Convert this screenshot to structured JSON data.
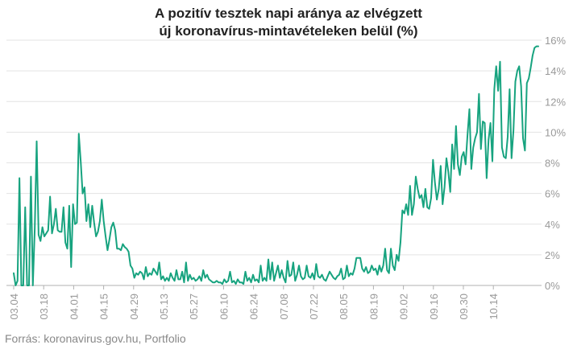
{
  "title": {
    "line1": "A pozitív tesztek napi aránya az elvégzett",
    "line2": "új koronavírus-mintavételeken belül (%)"
  },
  "source": "Forrás: koronavirus.gov.hu, Portfolio",
  "colors": {
    "line": "#17a37f",
    "grid": "#e3e3e3",
    "axis": "#b0b0b0",
    "text": "#999999"
  },
  "chart_data": {
    "type": "line",
    "title": "A pozitív tesztek napi aránya az elvégzett új koronavírus-mintavételeken belül (%)",
    "xlabel": "",
    "ylabel": "",
    "ylim": [
      0,
      16
    ],
    "y_axis_side": "right",
    "y_ticks": [
      "0%",
      "2%",
      "4%",
      "6%",
      "8%",
      "10%",
      "12%",
      "14%",
      "16%"
    ],
    "x_ticks": [
      "03.04",
      "03.18",
      "04.01",
      "04.15",
      "04.29",
      "05.13",
      "05.27",
      "06.10",
      "06.24",
      "07.08",
      "07.22",
      "08.05",
      "08.19",
      "09.02",
      "09.16",
      "09.30",
      "10.14"
    ],
    "grid": "horizontal",
    "series": [
      {
        "values": [
          0.8,
          0,
          0.3,
          7.0,
          0,
          0,
          5.1,
          0,
          0,
          7.1,
          0,
          3.7,
          9.4,
          3.3,
          2.9,
          3.8,
          3.2,
          3.4,
          3.6,
          5.8,
          3.4,
          4.0,
          5.0,
          3.6,
          3.5,
          3.5,
          5.1,
          2.8,
          2.4,
          5.2,
          1.2,
          5.3,
          4.0,
          4.1,
          9.9,
          8.1,
          6.0,
          6.4,
          4.2,
          5.3,
          3.8,
          5.2,
          4.1,
          3.2,
          3.5,
          4.2,
          5.6,
          4.2,
          3.2,
          2.3,
          3.0,
          3.8,
          4.1,
          3.6,
          2.4,
          2.4,
          2.3,
          2.7,
          2.5,
          2.4,
          2.2,
          1.3,
          1.1,
          0.5,
          0.8,
          0.7,
          0.9,
          0.8,
          0.4,
          1.2,
          0.6,
          0.8,
          0.7,
          1.1,
          0.9,
          0.7,
          1.5,
          0.4,
          0.6,
          0.3,
          0.5,
          0.3,
          0.8,
          0.5,
          0.3,
          1.0,
          0.4,
          0.4,
          0.9,
          0.2,
          1.5,
          0.3,
          0.7,
          0.4,
          0.5,
          0.3,
          0.4,
          0.6,
          0.3,
          1.0,
          0.5,
          0.7,
          0.4,
          0.3,
          0.2,
          0.2,
          0.3,
          0.2,
          0.2,
          0.1,
          0.4,
          0.2,
          0.3,
          0.9,
          0.2,
          0.3,
          0.1,
          0.4,
          0.2,
          0.2,
          0.1,
          0.9,
          0.3,
          0.5,
          0.2,
          0.7,
          0.3,
          0.4,
          0.2,
          1.3,
          0.3,
          0.5,
          0.3,
          1.7,
          0.4,
          1.5,
          0.3,
          0.8,
          1.3,
          0.5,
          1.0,
          0.5,
          0.2,
          1.6,
          0.6,
          0.7,
          1.5,
          0.3,
          0.7,
          1.3,
          0.6,
          0.4,
          0.5,
          1.3,
          0.6,
          0.5,
          0.8,
          0.4,
          1.4,
          0.6,
          0.5,
          0.7,
          0.4,
          0.3,
          0.6,
          0.9,
          0.7,
          0.5,
          0.4,
          0.6,
          0.7,
          1.1,
          0.4,
          0.5,
          1.3,
          0.6,
          0.8,
          0.7,
          1.1,
          1.8,
          1.8,
          1.8,
          1.1,
          0.9,
          1.2,
          0.8,
          0.9,
          1.3,
          1.0,
          1.1,
          0.7,
          1.3,
          0.9,
          1.3,
          2.4,
          1.0,
          0.8,
          2.4,
          1.3,
          1.0,
          2.0,
          1.6,
          2.8,
          4.9,
          4.7,
          5.3,
          4.6,
          6.5,
          4.6,
          5.3,
          7.1,
          6.3,
          5.7,
          5.9,
          5.1,
          6.3,
          5.1,
          5.0,
          5.7,
          8.2,
          6.7,
          5.6,
          6.3,
          7.8,
          5.3,
          6.4,
          8.3,
          7.4,
          6.1,
          9.2,
          7.6,
          10.4,
          7.9,
          7.2,
          8.4,
          8.7,
          7.9,
          9.8,
          11.5,
          7.6,
          9.0,
          9.6,
          10.0,
          12.5,
          8.9,
          10.7,
          10.6,
          7.0,
          9.5,
          10.6,
          8.1,
          12.8,
          14.3,
          12.7,
          14.6,
          9.0,
          8.4,
          8.3,
          9.7,
          12.8,
          8.3,
          10.1,
          13.3,
          14.0,
          14.3,
          13.0,
          9.6,
          8.8,
          13.2,
          13.5,
          14.2,
          15.0,
          15.5,
          15.6,
          15.6
        ]
      }
    ]
  }
}
